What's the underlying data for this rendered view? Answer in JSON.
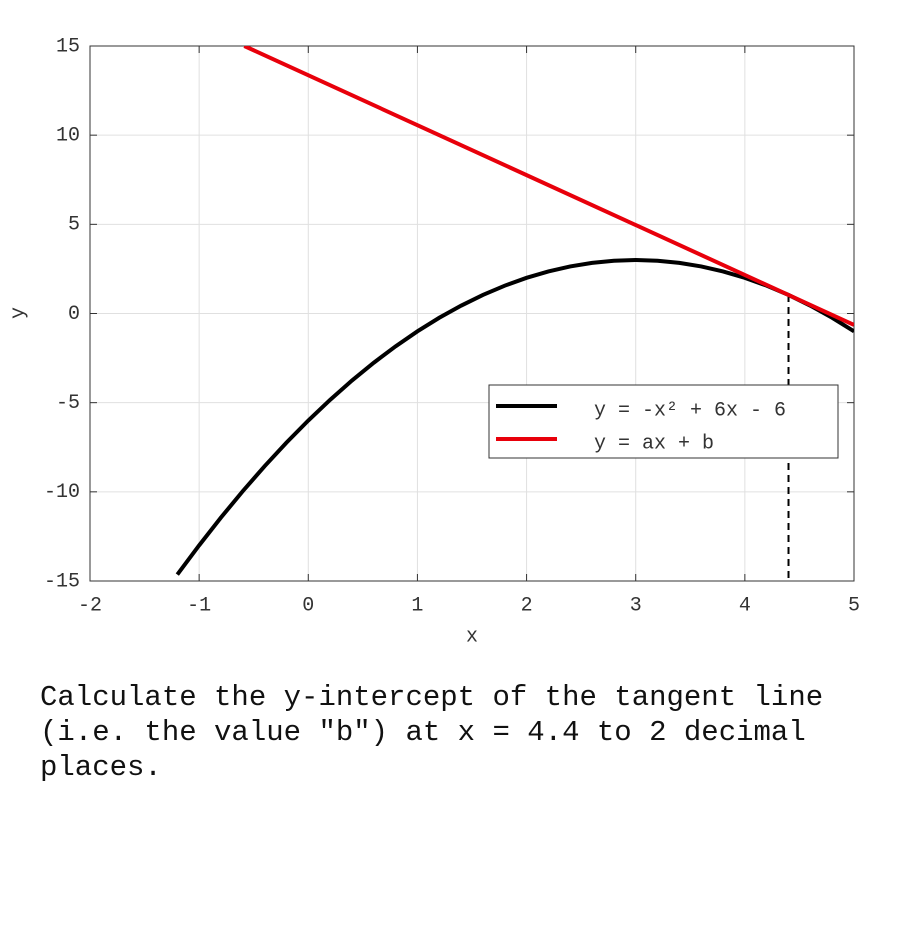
{
  "chart_data": {
    "type": "line",
    "xlabel": "x",
    "ylabel": "y",
    "xlim": [
      -2,
      5
    ],
    "ylim": [
      -15,
      15
    ],
    "xticks": [
      -2,
      -1,
      0,
      1,
      2,
      3,
      4,
      5
    ],
    "yticks": [
      -15,
      -10,
      -5,
      0,
      5,
      10,
      15
    ],
    "grid": true,
    "legend": "lower right",
    "series": [
      {
        "name": "y = -x² + 6x - 6",
        "color": "#000000",
        "x": [
          -1.2,
          -1.0,
          -0.8,
          -0.6,
          -0.4,
          -0.2,
          0,
          0.2,
          0.4,
          0.6,
          0.8,
          1.0,
          1.2,
          1.4,
          1.6,
          1.8,
          2.0,
          2.2,
          2.4,
          2.6,
          2.8,
          3.0,
          3.2,
          3.4,
          3.6,
          3.8,
          4.0,
          4.2,
          4.4,
          4.6,
          4.8,
          5.0
        ],
        "values": [
          -14.64,
          -13,
          -11.44,
          -9.96,
          -8.56,
          -7.24,
          -6,
          -4.84,
          -3.76,
          -2.76,
          -1.84,
          -1,
          -0.24,
          0.44,
          1.04,
          1.56,
          2,
          2.36,
          2.64,
          2.84,
          2.96,
          3,
          2.96,
          2.84,
          2.64,
          2.36,
          2,
          1.56,
          1.04,
          0.44,
          -0.24,
          -1
        ]
      },
      {
        "name": "y = ax + b",
        "color": "#e8000b",
        "x": [
          -0.586,
          5
        ],
        "values": [
          15,
          -0.64
        ]
      }
    ],
    "tangent_x": 4.4,
    "tangent_y": 1.04
  },
  "question": "Calculate the y-intercept of the tangent line (i.e. the value \"b\") at x = 4.4 to 2 decimal places."
}
